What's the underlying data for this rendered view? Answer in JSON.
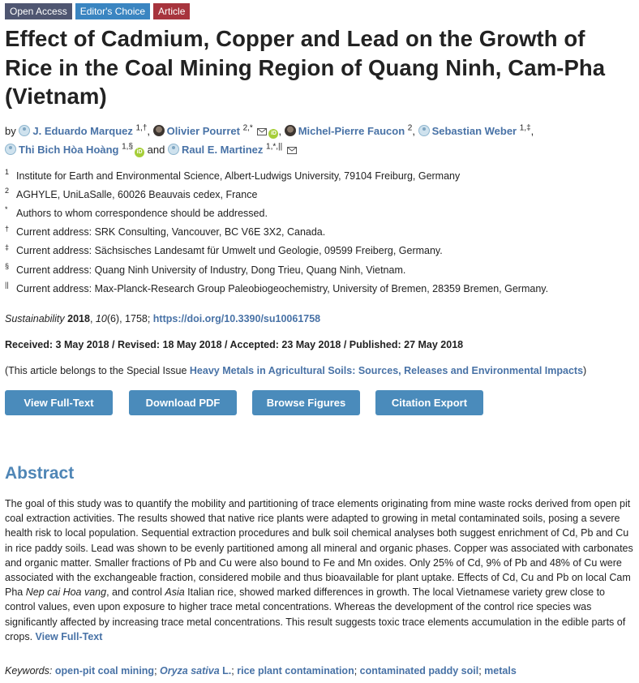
{
  "badges": {
    "open_access": "Open Access",
    "editors_choice": "Editor's Choice",
    "article": "Article"
  },
  "title": "Effect of Cadmium, Copper and Lead on the Growth of Rice in the Coal Mining Region of Quang Ninh, Cam-Pha (Vietnam)",
  "authors": {
    "by": "by",
    "and": "and",
    "list": [
      {
        "name": "J. Eduardo Marquez",
        "sup": "1,†"
      },
      {
        "name": "Olivier Pourret",
        "sup": "2,*"
      },
      {
        "name": "Michel-Pierre Faucon",
        "sup": "2"
      },
      {
        "name": "Sebastian Weber",
        "sup": "1,‡"
      },
      {
        "name": "Thi Bich Hòa Hoàng",
        "sup": "1,§"
      },
      {
        "name": "Raul E. Martinez",
        "sup": "1,*,||"
      }
    ]
  },
  "affiliations": [
    {
      "mark": "1",
      "text": "Institute for Earth and Environmental Science, Albert-Ludwigs University, 79104 Freiburg, Germany"
    },
    {
      "mark": "2",
      "text": "AGHYLE, UniLaSalle, 60026 Beauvais cedex, France"
    },
    {
      "mark": "*",
      "text": "Authors to whom correspondence should be addressed."
    },
    {
      "mark": "†",
      "text": "Current address: SRK Consulting, Vancouver, BC V6E 3X2, Canada."
    },
    {
      "mark": "‡",
      "text": "Current address: Sächsisches Landesamt für Umwelt und Geologie, 09599 Freiberg, Germany."
    },
    {
      "mark": "§",
      "text": "Current address: Quang Ninh University of Industry, Dong Trieu, Quang Ninh, Vietnam."
    },
    {
      "mark": "||",
      "text": "Current address: Max-Planck-Research Group Paleobiogeochemistry, University of Bremen, 28359 Bremen, Germany."
    }
  ],
  "citation": {
    "journal": "Sustainability",
    "year": "2018",
    "volume": "10",
    "issue_pages": "(6), 1758; ",
    "doi": "https://doi.org/10.3390/su10061758"
  },
  "dates": "Received: 3 May 2018 / Revised: 18 May 2018 / Accepted: 23 May 2018 / Published: 27 May 2018",
  "special_issue": {
    "prefix": "(This article belongs to the Special Issue ",
    "link": "Heavy Metals in Agricultural Soils: Sources, Releases and Environmental Impacts",
    "suffix": ")"
  },
  "buttons": {
    "view_full_text": "View Full-Text",
    "download_pdf": "Download PDF",
    "browse_figures": "Browse Figures",
    "citation_export": "Citation Export"
  },
  "abstract": {
    "heading": "Abstract",
    "part1": "The goal of this study was to quantify the mobility and partitioning of trace elements originating from mine waste rocks derived from open pit coal extraction activities. The results showed that native rice plants were adapted to growing in metal contaminated soils, posing a severe health risk to local population. Sequential extraction procedures and bulk soil chemical analyses both suggest enrichment of Cd, Pb and Cu in rice paddy soils. Lead was shown to be evenly partitioned among all mineral and organic phases. Copper was associated with carbonates and organic matter. Smaller fractions of Pb and Cu were also bound to Fe and Mn oxides. Only 25% of Cd, 9% of Pb and 48% of Cu were associated with the exchangeable fraction, considered mobile and thus bioavailable for plant uptake. Effects of Cd, Cu and Pb on local Cam Pha ",
    "italic1": "Nep cai Hoa vang",
    "part2": ", and control ",
    "italic2": "Asia",
    "part3": " Italian rice, showed marked differences in growth. The local Vietnamese variety grew close to control values, even upon exposure to higher trace metal concentrations. Whereas the development of the control rice species was significantly affected by increasing trace metal concentrations. This result suggests toxic trace elements accumulation in the edible parts of crops. ",
    "view_full_text": "View Full-Text"
  },
  "keywords": {
    "label": "Keywords:",
    "items": [
      "open-pit coal mining",
      "Oryza sativa",
      "L.",
      "rice plant contamination",
      "contaminated paddy soil",
      "metals"
    ]
  },
  "colors": {
    "link": "#4872a6",
    "button": "#4a8bbb",
    "badge_open_access": "#4f5671",
    "badge_editors_choice": "#3a85c1",
    "badge_article": "#a7343d"
  }
}
